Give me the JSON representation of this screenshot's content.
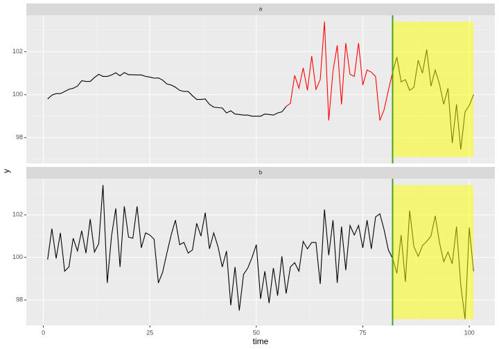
{
  "chart_data": [
    {
      "type": "line",
      "facet": "a",
      "ylabel": "y",
      "x": [
        1,
        2,
        3,
        4,
        5,
        6,
        7,
        8,
        9,
        10,
        11,
        12,
        13,
        14,
        15,
        16,
        17,
        18,
        19,
        20,
        21,
        22,
        23,
        24,
        25,
        26,
        27,
        28,
        29,
        30,
        31,
        32,
        33,
        34,
        35,
        36,
        37,
        38,
        39,
        40,
        41,
        42,
        43,
        44,
        45,
        46,
        47,
        48,
        49,
        50,
        51,
        52,
        53,
        54,
        55,
        56,
        57,
        58,
        59,
        60,
        61,
        62,
        63,
        64,
        65,
        66,
        67,
        68,
        69,
        70,
        71,
        72,
        73,
        74,
        75,
        76,
        77,
        78,
        79,
        80,
        81,
        82,
        83,
        84,
        85,
        86,
        87,
        88,
        89,
        90,
        91,
        92,
        93,
        94,
        95,
        96,
        97,
        98,
        99,
        100,
        101
      ],
      "series": [
        {
          "color": "#000000",
          "values": [
            99.8,
            99.98,
            100.05,
            100.05,
            100.15,
            100.25,
            100.3,
            100.4,
            100.65,
            100.62,
            100.62,
            100.8,
            100.95,
            100.85,
            100.85,
            100.92,
            101.02,
            100.88,
            101.03,
            100.93,
            100.93,
            100.92,
            100.92,
            100.85,
            100.82,
            100.77,
            100.78,
            100.68,
            100.5,
            100.45,
            100.35,
            100.2,
            100.15,
            100.15,
            99.95,
            99.78,
            99.78,
            99.8,
            99.55,
            99.42,
            99.4,
            99.38,
            99.15,
            99.25,
            99.1,
            99.08,
            99.05,
            99.05,
            99.0,
            99.0,
            99.0,
            99.1,
            99.08,
            99.05,
            99.15,
            99.2,
            99.45,
            null,
            null,
            null,
            null,
            null,
            null,
            null,
            null,
            null,
            null,
            null,
            null,
            null,
            null,
            null,
            null,
            null,
            null,
            null,
            null,
            null,
            null,
            null,
            null,
            101.05,
            101.75,
            100.6,
            100.7,
            100.2,
            100.35,
            101.6,
            101.0,
            102.1,
            100.4,
            101.15,
            100.5,
            99.55,
            100.3,
            97.75,
            99.55,
            97.45,
            99.2,
            99.5,
            100.0
          ]
        },
        {
          "color": "#ff0000",
          "values": [
            null,
            null,
            null,
            null,
            null,
            null,
            null,
            null,
            null,
            null,
            null,
            null,
            null,
            null,
            null,
            null,
            null,
            null,
            null,
            null,
            null,
            null,
            null,
            null,
            null,
            null,
            null,
            null,
            null,
            null,
            null,
            null,
            null,
            null,
            null,
            null,
            null,
            null,
            null,
            null,
            null,
            null,
            null,
            null,
            null,
            null,
            null,
            null,
            null,
            null,
            null,
            null,
            null,
            null,
            null,
            null,
            99.45,
            99.6,
            100.9,
            100.3,
            101.25,
            100.2,
            101.8,
            100.25,
            100.7,
            103.4,
            98.8,
            101.1,
            102.3,
            99.55,
            102.4,
            100.95,
            100.85,
            102.4,
            100.45,
            101.15,
            101.05,
            100.85,
            98.8,
            99.3,
            100.2,
            101.05,
            null,
            null,
            null,
            null,
            null,
            null,
            null,
            null,
            null,
            null,
            null,
            null,
            null,
            null,
            null,
            null,
            null,
            null,
            null
          ]
        }
      ],
      "vline": 82,
      "vline_color": "#4d9e1a",
      "band": {
        "x": [
          82,
          101
        ],
        "y": [
          97.1,
          103.4
        ],
        "color": "#ffff00"
      },
      "xlim": [
        -4,
        106
      ],
      "ylim": [
        96.8,
        103.7
      ],
      "xticks": [
        0,
        25,
        50,
        75,
        100
      ],
      "yticks": [
        98,
        100,
        102
      ]
    },
    {
      "type": "line",
      "facet": "b",
      "xlabel": "time",
      "x": [
        1,
        2,
        3,
        4,
        5,
        6,
        7,
        8,
        9,
        10,
        11,
        12,
        13,
        14,
        15,
        16,
        17,
        18,
        19,
        20,
        21,
        22,
        23,
        24,
        25,
        26,
        27,
        28,
        29,
        30,
        31,
        32,
        33,
        34,
        35,
        36,
        37,
        38,
        39,
        40,
        41,
        42,
        43,
        44,
        45,
        46,
        47,
        48,
        49,
        50,
        51,
        52,
        53,
        54,
        55,
        56,
        57,
        58,
        59,
        60,
        61,
        62,
        63,
        64,
        65,
        66,
        67,
        68,
        69,
        70,
        71,
        72,
        73,
        74,
        75,
        76,
        77,
        78,
        79,
        80,
        81,
        82,
        83,
        84,
        85,
        86,
        87,
        88,
        89,
        90,
        91,
        92,
        93,
        94,
        95,
        96,
        97,
        98,
        99,
        100,
        101
      ],
      "series": [
        {
          "color": "#000000",
          "values": [
            99.9,
            101.35,
            99.95,
            101.15,
            99.35,
            99.55,
            100.9,
            100.3,
            101.25,
            100.2,
            101.8,
            100.25,
            100.65,
            103.4,
            98.8,
            101.0,
            102.3,
            99.55,
            102.4,
            100.95,
            100.9,
            102.4,
            100.45,
            101.15,
            101.05,
            100.85,
            98.8,
            99.3,
            100.2,
            101.05,
            101.75,
            100.6,
            100.7,
            100.2,
            100.35,
            101.6,
            101.0,
            102.1,
            100.4,
            101.15,
            100.5,
            99.55,
            100.3,
            97.75,
            99.55,
            97.5,
            99.2,
            99.5,
            100.0,
            100.6,
            98.05,
            99.35,
            97.85,
            99.5,
            98.2,
            100.05,
            98.3,
            99.55,
            99.75,
            99.35,
            100.75,
            100.4,
            100.7,
            100.7,
            98.75,
            102.25,
            100.1,
            101.75,
            98.8,
            101.45,
            99.4,
            101.5,
            101.05,
            101.5,
            100.45,
            101.75,
            100.4,
            101.9,
            102.05,
            101.3,
            100.35,
            99.95,
            99.25,
            101.05,
            98.85,
            102.2,
            100.5,
            100.05,
            100.55,
            100.75,
            101.0,
            101.95,
            100.7,
            99.8,
            100.25,
            99.7,
            101.45,
            98.7,
            97.1,
            101.4,
            99.35
          ]
        }
      ],
      "vline": 82,
      "vline_color": "#4d9e1a",
      "band": {
        "x": [
          82,
          101
        ],
        "y": [
          97.1,
          103.4
        ],
        "color": "#ffff00"
      },
      "xlim": [
        -4,
        106
      ],
      "ylim": [
        96.8,
        103.7
      ],
      "xticks": [
        0,
        25,
        50,
        75,
        100
      ],
      "yticks": [
        98,
        100,
        102
      ]
    }
  ]
}
